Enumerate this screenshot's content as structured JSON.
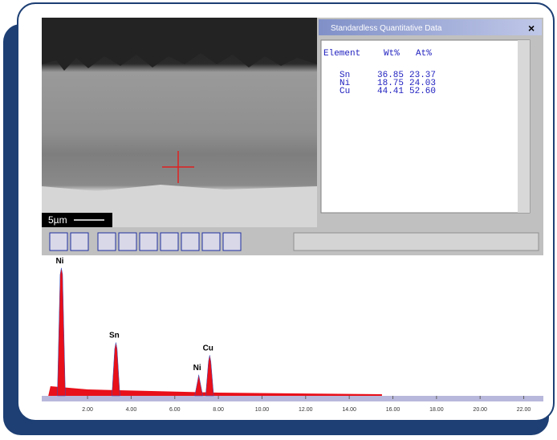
{
  "quant_window": {
    "title": "Standardless Quantitative Data",
    "headers": [
      "Element",
      "Wt%",
      "At%"
    ],
    "rows": [
      [
        "Sn",
        "36.85",
        "23.37"
      ],
      [
        "Ni",
        "18.75",
        "24.03"
      ],
      [
        "Cu",
        "44.41",
        "52.60"
      ]
    ]
  },
  "image": {
    "scale_label": "5µm"
  },
  "spectrum": {
    "xlim": [
      -0.1,
      22.9
    ],
    "xticks": [
      {
        "value": 2,
        "label": "2.00"
      },
      {
        "value": 4,
        "label": "4.00"
      },
      {
        "value": 6,
        "label": "6.00"
      },
      {
        "value": 8,
        "label": "8.00"
      },
      {
        "value": 10,
        "label": "10.00"
      },
      {
        "value": 12,
        "label": "12.00"
      },
      {
        "value": 14,
        "label": "14.00"
      },
      {
        "value": 16,
        "label": "16.00"
      },
      {
        "value": 18,
        "label": "18.00"
      },
      {
        "value": 20,
        "label": "20.00"
      },
      {
        "value": 22,
        "label": "22.00"
      }
    ],
    "peaks": [
      {
        "label": "Ni",
        "x": 0.8,
        "height": 91
      },
      {
        "label": "Sn",
        "x": 3.3,
        "height": 38
      },
      {
        "label": "Ni",
        "x": 7.1,
        "height": 15
      },
      {
        "label": "Cu",
        "x": 7.6,
        "height": 29
      }
    ],
    "color": "#e8101a"
  }
}
